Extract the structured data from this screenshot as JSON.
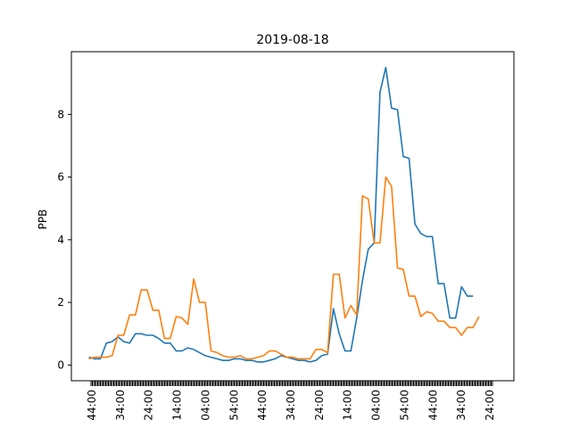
{
  "chart_data": {
    "type": "line",
    "title": "2019-08-18",
    "xlabel": "",
    "ylabel": "PPB",
    "ylim": [
      -0.5,
      10.0
    ],
    "grid": false,
    "legend": "none",
    "y_ticks": [
      0,
      2,
      4,
      6,
      8
    ],
    "x_tick_labels": [
      "44:00",
      "34:00",
      "24:00",
      "14:00",
      "04:00",
      "54:00",
      "44:00",
      "34:00",
      "24:00",
      "14:00",
      "04:00",
      "54:00",
      "44:00",
      "34:00",
      "24:00"
    ],
    "x": [
      0,
      1,
      2,
      3,
      4,
      5,
      6,
      7,
      8,
      9,
      10,
      11,
      12,
      13,
      14,
      15,
      16,
      17,
      18,
      19,
      20,
      21,
      22,
      23,
      24,
      25,
      26,
      27,
      28,
      29,
      30,
      31,
      32,
      33,
      34,
      35,
      36,
      37,
      38,
      39,
      40,
      41,
      42,
      43,
      44,
      45,
      46,
      47,
      48,
      49,
      50,
      51,
      52,
      53,
      54,
      55,
      56,
      57,
      58,
      59,
      60,
      61,
      62,
      63,
      64,
      65,
      66,
      67,
      68,
      69,
      70
    ],
    "series": [
      {
        "color": "#1f77b4",
        "values": [
          0.25,
          0.2,
          0.2,
          0.7,
          0.75,
          0.9,
          0.75,
          0.7,
          1.0,
          1.0,
          0.95,
          0.95,
          0.85,
          0.7,
          0.7,
          0.45,
          0.45,
          0.55,
          0.5,
          0.4,
          0.3,
          0.25,
          0.2,
          0.15,
          0.15,
          0.2,
          0.2,
          0.15,
          0.15,
          0.1,
          0.1,
          0.15,
          0.2,
          0.3,
          0.25,
          0.2,
          0.15,
          0.15,
          0.1,
          0.15,
          0.3,
          0.35,
          1.8,
          1.0,
          0.45,
          0.45,
          1.5,
          2.7,
          3.7,
          3.9,
          8.7,
          9.5,
          8.2,
          8.15,
          6.65,
          6.6,
          4.5,
          4.2,
          4.1,
          4.1,
          2.6,
          2.6,
          1.5,
          1.5,
          2.5,
          2.2,
          2.2,
          null,
          null,
          null,
          null
        ]
      },
      {
        "color": "#ff7f0e",
        "values": [
          0.2,
          0.25,
          0.25,
          0.25,
          0.3,
          0.95,
          0.95,
          1.6,
          1.6,
          2.4,
          2.4,
          1.75,
          1.75,
          0.85,
          0.85,
          1.55,
          1.5,
          1.3,
          2.75,
          2.0,
          2.0,
          0.45,
          0.4,
          0.3,
          0.25,
          0.25,
          0.3,
          0.2,
          0.2,
          0.25,
          0.3,
          0.45,
          0.45,
          0.35,
          0.25,
          0.25,
          0.2,
          0.2,
          0.2,
          0.5,
          0.5,
          0.4,
          2.9,
          2.9,
          1.5,
          1.9,
          1.6,
          5.4,
          5.3,
          3.9,
          3.9,
          6.0,
          5.7,
          3.1,
          3.05,
          2.2,
          2.2,
          1.55,
          1.7,
          1.65,
          1.4,
          1.4,
          1.2,
          1.2,
          0.95,
          1.2,
          1.2,
          1.55,
          null,
          null,
          null
        ]
      }
    ]
  }
}
